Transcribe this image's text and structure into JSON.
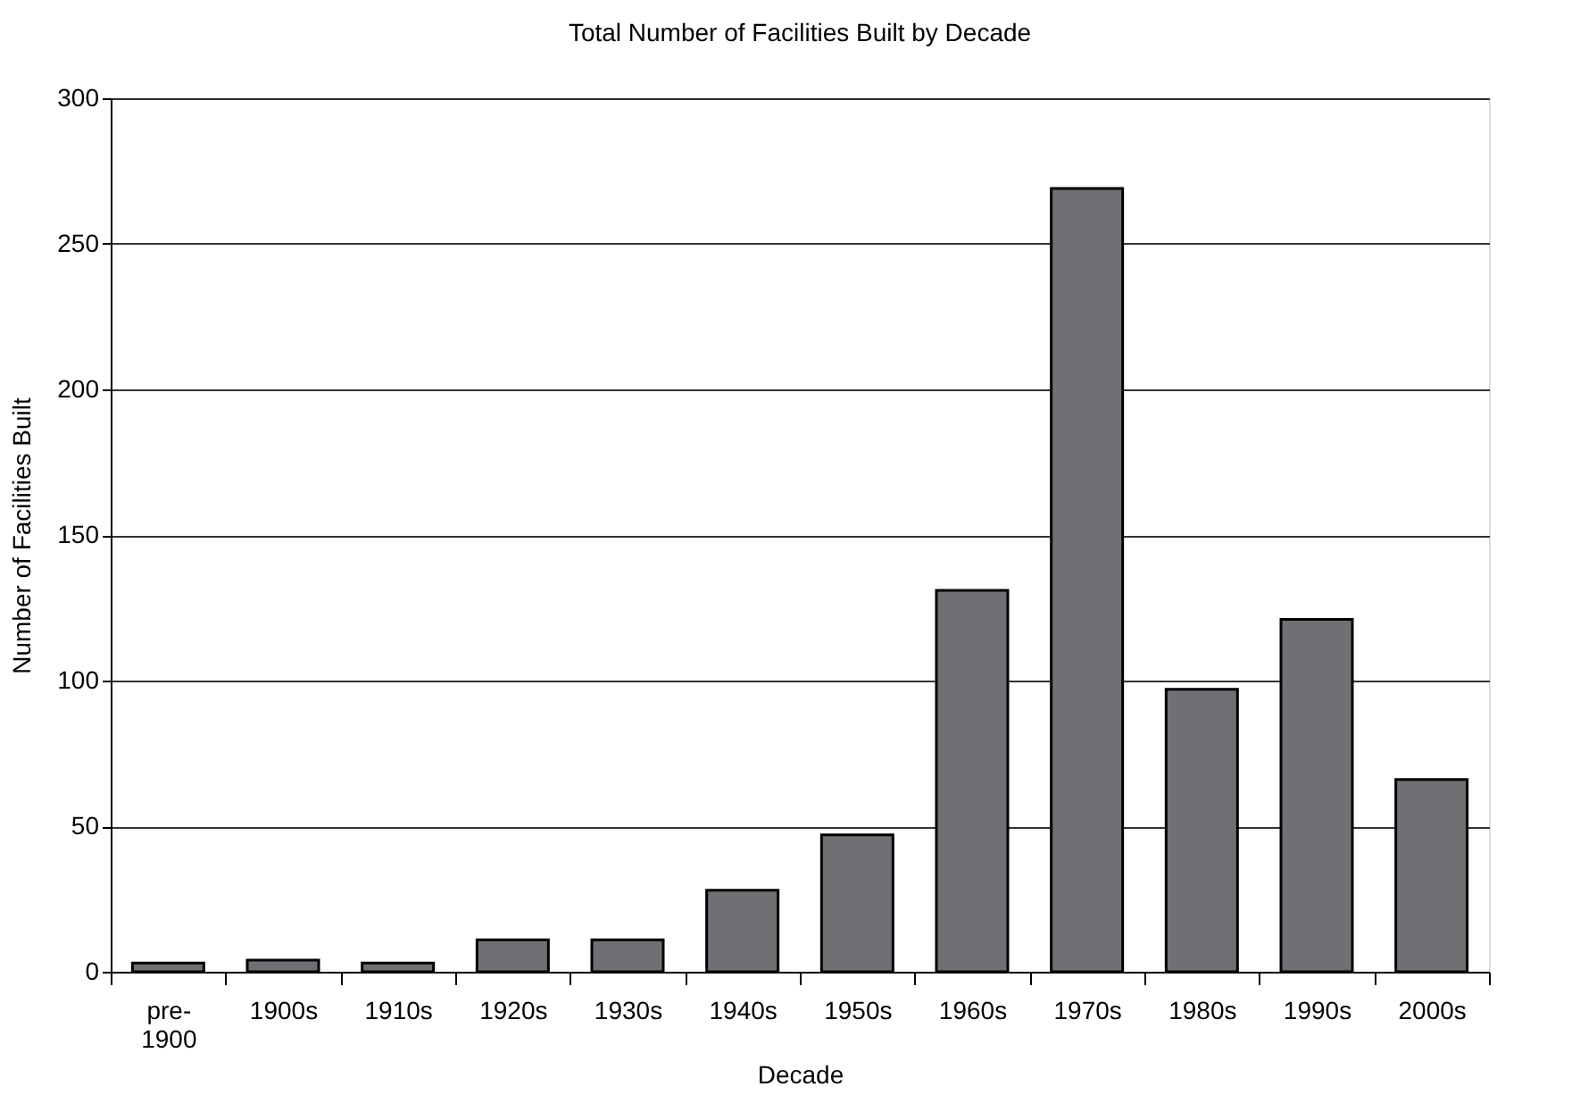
{
  "chart_data": {
    "type": "bar",
    "title": "Total Number of Facilities Built by Decade",
    "xlabel": "Decade",
    "ylabel": "Number of Facilities Built",
    "categories": [
      "pre-1900",
      "1900s",
      "1910s",
      "1920s",
      "1930s",
      "1940s",
      "1950s",
      "1960s",
      "1970s",
      "1980s",
      "1990s",
      "2000s"
    ],
    "values": [
      3,
      4,
      3,
      11,
      11,
      28,
      47,
      131,
      269,
      97,
      121,
      66
    ],
    "color": "#6f7074",
    "ylim": [
      0,
      300
    ],
    "yticks": [
      0,
      50,
      100,
      150,
      200,
      250,
      300
    ],
    "grid": "y",
    "legend": false
  }
}
